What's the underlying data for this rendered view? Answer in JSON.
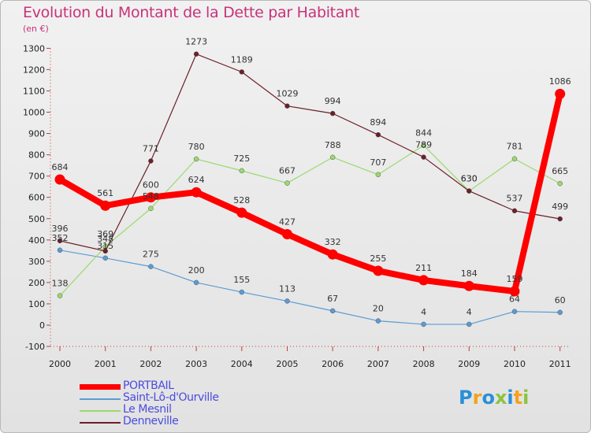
{
  "title": "Evolution du Montant de la Dette par Habitant",
  "subtitle": "(en €)",
  "logo": {
    "text": "Proxiti",
    "letter_colors": [
      "#2a8fd8",
      "#f5a21b",
      "#2a8fd8",
      "#8ac43f",
      "#2a8fd8",
      "#f5a21b",
      "#8ac43f"
    ]
  },
  "chart_data": {
    "type": "line",
    "x": [
      "2000",
      "2001",
      "2002",
      "2003",
      "2004",
      "2005",
      "2006",
      "2007",
      "2008",
      "2009",
      "2010",
      "2011"
    ],
    "ylim": [
      -100,
      1300
    ],
    "yticks": [
      -100,
      0,
      100,
      200,
      300,
      400,
      500,
      600,
      700,
      800,
      900,
      1000,
      1100,
      1200,
      1300
    ],
    "grid": false,
    "legend_position": "bottom-left",
    "series": [
      {
        "name": "Saint-Lô-d'Ourville",
        "color": "#5b9bd5",
        "values": [
          352,
          315,
          275,
          200,
          155,
          113,
          67,
          20,
          4,
          4,
          64,
          60
        ]
      },
      {
        "name": "Le Mesnil",
        "color": "#9bd96e",
        "values": [
          138,
          369,
          548,
          780,
          725,
          667,
          788,
          707,
          844,
          630,
          781,
          665
        ]
      },
      {
        "name": "Denneville",
        "color": "#6b1f2a",
        "values": [
          396,
          348,
          771,
          1273,
          1189,
          1029,
          994,
          894,
          789,
          630,
          537,
          499
        ]
      },
      {
        "name": "PORTBAIL",
        "color": "#ff0000",
        "values": [
          684,
          561,
          600,
          624,
          528,
          427,
          332,
          255,
          211,
          184,
          159,
          1086
        ]
      }
    ],
    "data_labels": [
      {
        "series": "Saint-Lô-d'Ourville",
        "labels": [
          "352",
          "315",
          "275",
          "200",
          "155",
          "113",
          "67",
          "20",
          "4",
          "4",
          "64",
          "60"
        ]
      },
      {
        "series": "Le Mesnil",
        "labels": [
          "138",
          "369",
          "548",
          "780",
          "725",
          "667",
          "788",
          "707",
          "844",
          "630",
          "781",
          "665"
        ]
      },
      {
        "series": "Denneville",
        "labels": [
          "396",
          "348",
          "771",
          "1273",
          "1189",
          "1029",
          "994",
          "894",
          "789",
          "630",
          "537",
          "499"
        ]
      },
      {
        "series": "PORTBAIL",
        "labels": [
          "684",
          "561",
          "600",
          "624",
          "528",
          "427",
          "332",
          "255",
          "211",
          "184",
          "159",
          "1086"
        ]
      }
    ]
  },
  "legend": [
    {
      "label": "PORTBAIL",
      "color": "#ff0000"
    },
    {
      "label": "Saint-Lô-d'Ourville",
      "color": "#5b9bd5"
    },
    {
      "label": "Le Mesnil",
      "color": "#9bd96e"
    },
    {
      "label": "Denneville",
      "color": "#6b1f2a"
    }
  ]
}
